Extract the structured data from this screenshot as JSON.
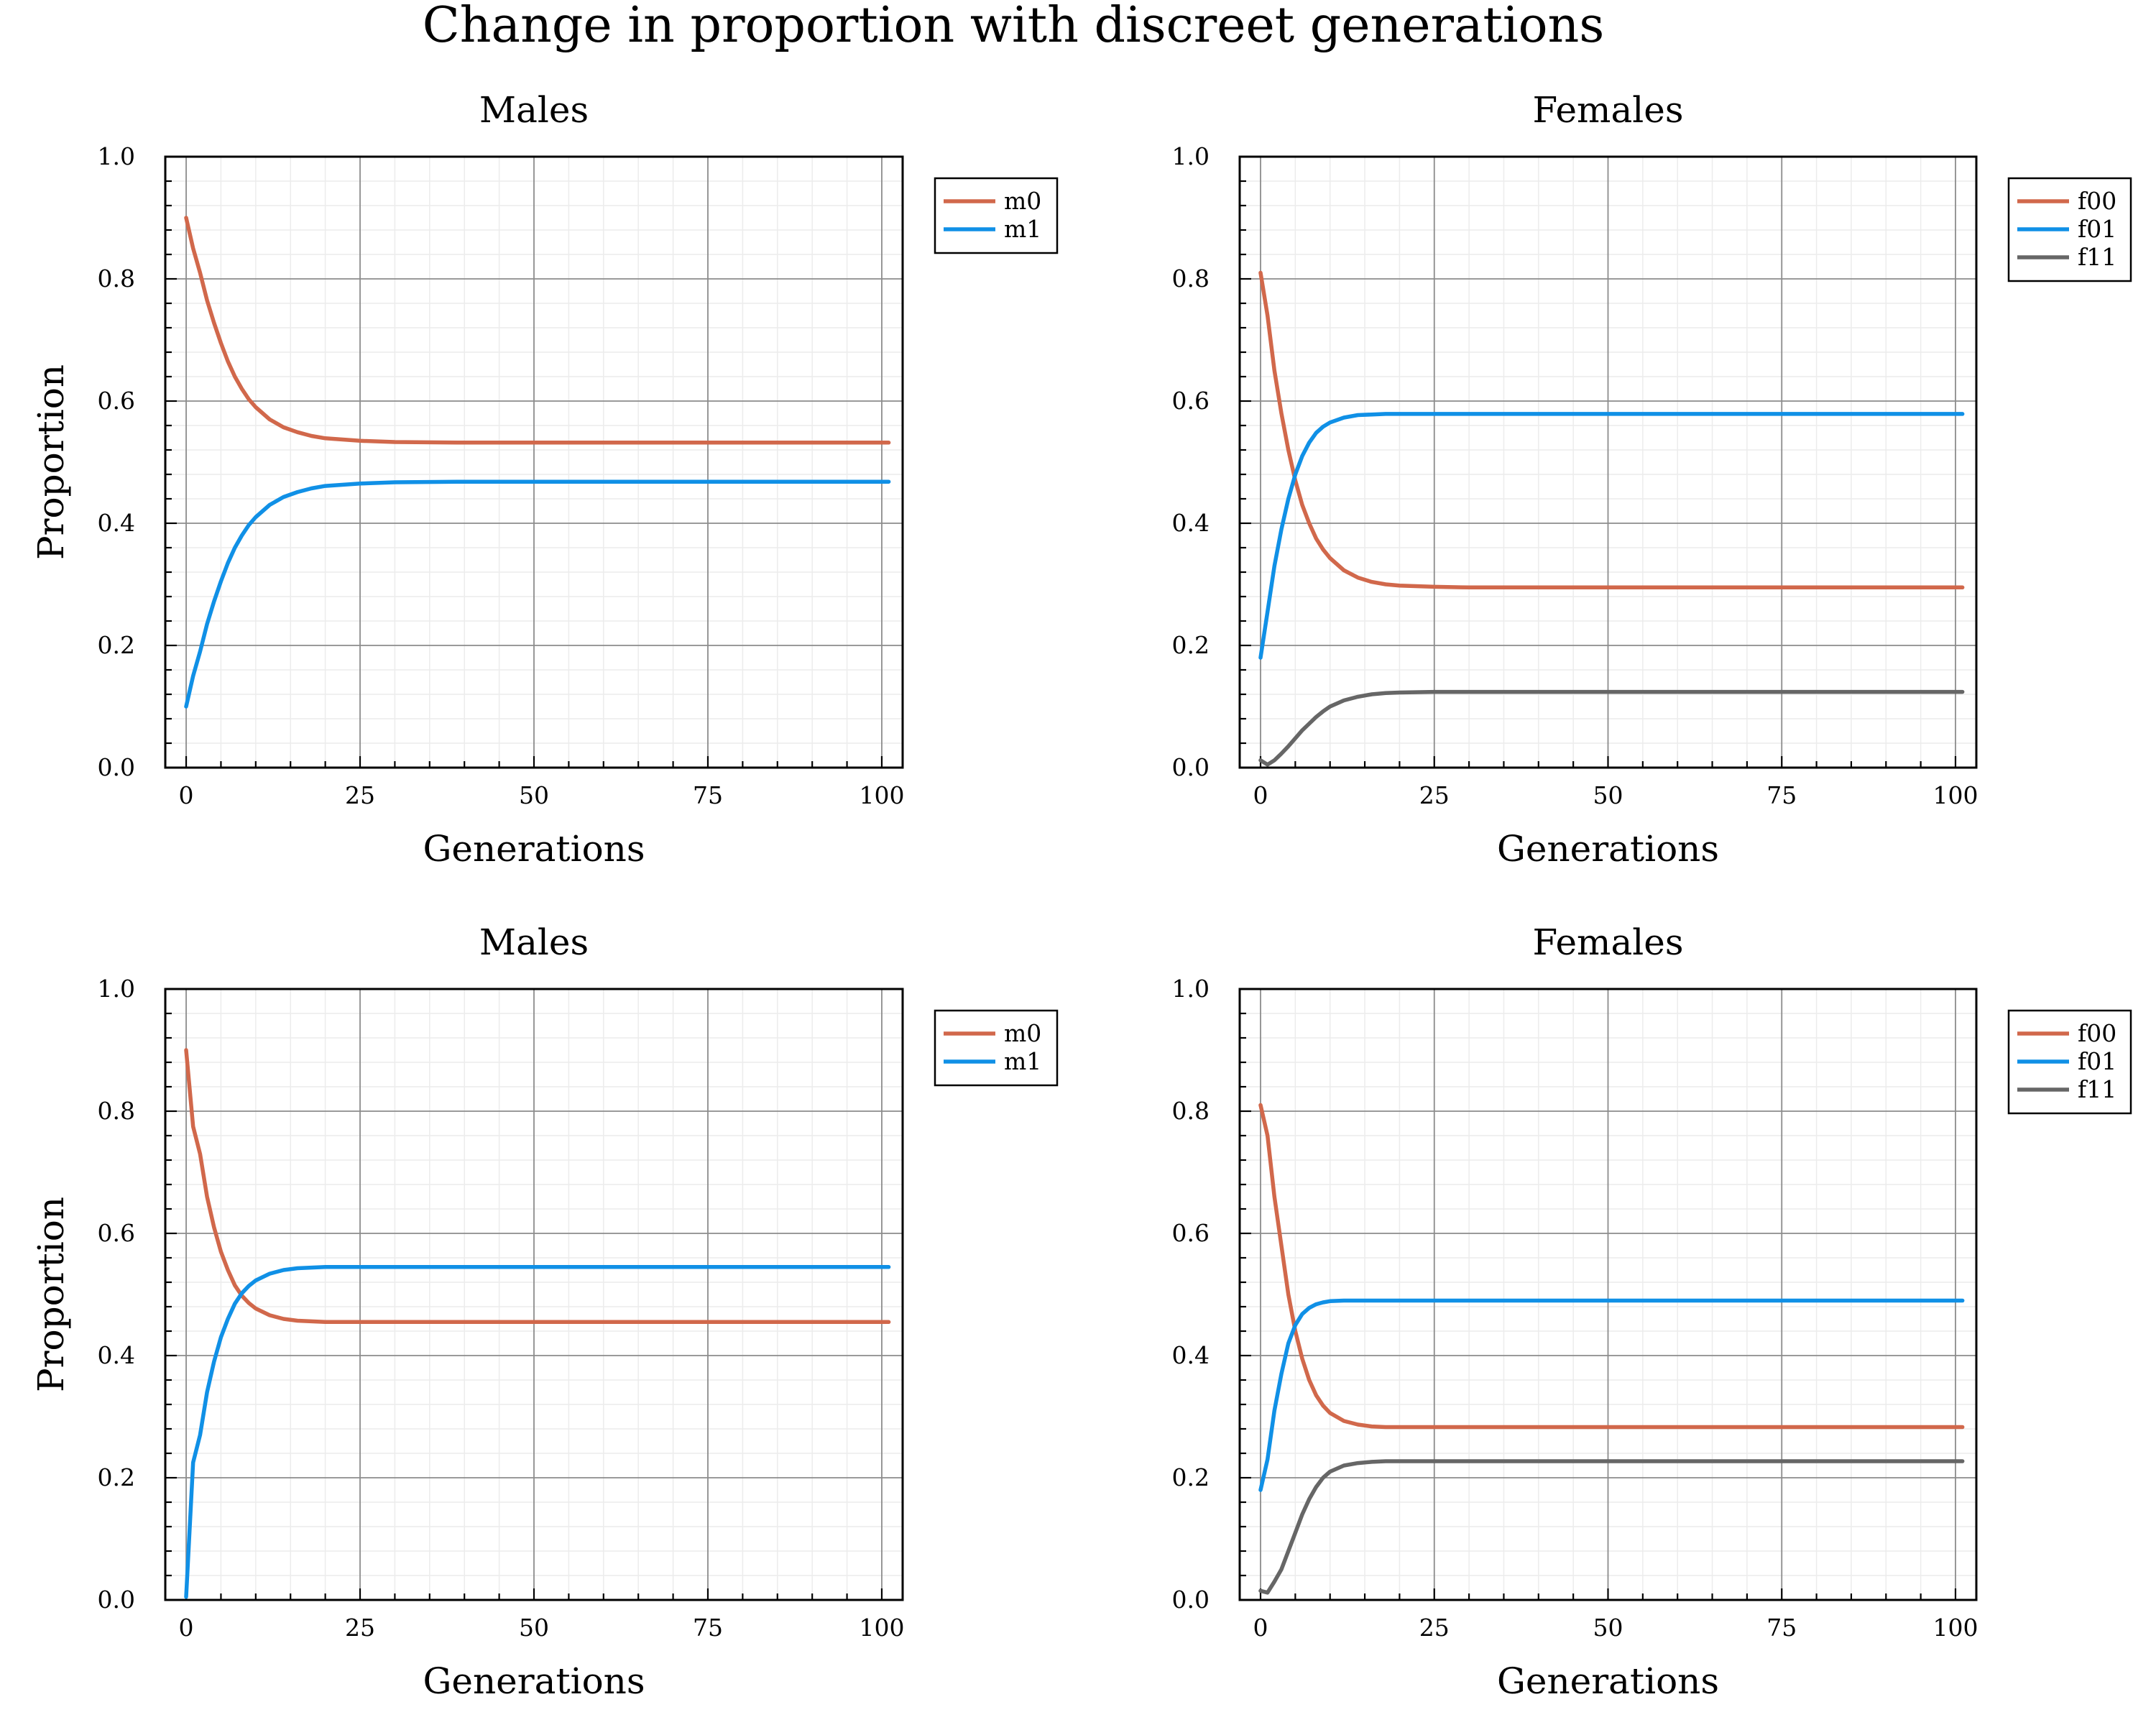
{
  "figure_title": "Change in proportion with discreet generations",
  "colors": {
    "m0": "#d1684b",
    "m1": "#1090e6",
    "f00": "#d1684b",
    "f01": "#1090e6",
    "f11": "#666666",
    "grid_major": "#8c8c8c",
    "grid_minor": "#ececec"
  },
  "chart_data": [
    {
      "type": "line",
      "title": "Males",
      "xlabel": "Generations",
      "ylabel": "Proportion",
      "xlim": [
        -3,
        103
      ],
      "ylim": [
        0,
        1
      ],
      "xticks": [
        0,
        25,
        50,
        75,
        100
      ],
      "yticks": [
        "0.0",
        "0.2",
        "0.4",
        "0.6",
        "0.8",
        "1.0"
      ],
      "grid": true,
      "legend_position": "outer-top-right",
      "x": [
        0,
        1,
        2,
        3,
        4,
        5,
        6,
        7,
        8,
        9,
        10,
        12,
        14,
        16,
        18,
        20,
        25,
        30,
        40,
        50,
        60,
        70,
        80,
        90,
        101
      ],
      "series": [
        {
          "name": "m0",
          "values": [
            0.9,
            0.85,
            0.81,
            0.765,
            0.728,
            0.695,
            0.665,
            0.64,
            0.62,
            0.603,
            0.59,
            0.57,
            0.557,
            0.549,
            0.543,
            0.539,
            0.535,
            0.533,
            0.532,
            0.532,
            0.532,
            0.532,
            0.532,
            0.532,
            0.532
          ]
        },
        {
          "name": "m1",
          "values": [
            0.1,
            0.15,
            0.19,
            0.235,
            0.272,
            0.305,
            0.335,
            0.36,
            0.38,
            0.397,
            0.41,
            0.43,
            0.443,
            0.451,
            0.457,
            0.461,
            0.465,
            0.467,
            0.468,
            0.468,
            0.468,
            0.468,
            0.468,
            0.468,
            0.468
          ]
        }
      ]
    },
    {
      "type": "line",
      "title": "Females",
      "xlabel": "Generations",
      "ylabel": "",
      "xlim": [
        -3,
        103
      ],
      "ylim": [
        0,
        1
      ],
      "xticks": [
        0,
        25,
        50,
        75,
        100
      ],
      "yticks": [
        "0.0",
        "0.2",
        "0.4",
        "0.6",
        "0.8",
        "1.0"
      ],
      "grid": true,
      "legend_position": "outer-top-right",
      "x": [
        0,
        1,
        2,
        3,
        4,
        5,
        6,
        7,
        8,
        9,
        10,
        12,
        14,
        16,
        18,
        20,
        25,
        30,
        40,
        50,
        60,
        70,
        80,
        90,
        101
      ],
      "series": [
        {
          "name": "f00",
          "values": [
            0.81,
            0.74,
            0.65,
            0.58,
            0.52,
            0.47,
            0.43,
            0.4,
            0.375,
            0.357,
            0.343,
            0.323,
            0.311,
            0.304,
            0.3,
            0.298,
            0.296,
            0.295,
            0.295,
            0.295,
            0.295,
            0.295,
            0.295,
            0.295,
            0.295
          ]
        },
        {
          "name": "f01",
          "values": [
            0.18,
            0.255,
            0.33,
            0.39,
            0.44,
            0.48,
            0.51,
            0.532,
            0.548,
            0.558,
            0.565,
            0.573,
            0.577,
            0.578,
            0.579,
            0.579,
            0.579,
            0.579,
            0.579,
            0.579,
            0.579,
            0.579,
            0.579,
            0.579,
            0.579
          ]
        },
        {
          "name": "f11",
          "values": [
            0.012,
            0.005,
            0.012,
            0.023,
            0.035,
            0.048,
            0.061,
            0.072,
            0.083,
            0.092,
            0.1,
            0.11,
            0.116,
            0.12,
            0.122,
            0.123,
            0.124,
            0.124,
            0.124,
            0.124,
            0.124,
            0.124,
            0.124,
            0.124,
            0.124
          ]
        }
      ]
    },
    {
      "type": "line",
      "title": "Males",
      "xlabel": "Generations",
      "ylabel": "Proportion",
      "xlim": [
        -3,
        103
      ],
      "ylim": [
        0,
        1
      ],
      "xticks": [
        0,
        25,
        50,
        75,
        100
      ],
      "yticks": [
        "0.0",
        "0.2",
        "0.4",
        "0.6",
        "0.8",
        "1.0"
      ],
      "grid": true,
      "legend_position": "outer-top-right",
      "x": [
        0,
        1,
        2,
        3,
        4,
        5,
        6,
        7,
        8,
        9,
        10,
        12,
        14,
        16,
        18,
        20,
        25,
        30,
        40,
        50,
        60,
        70,
        80,
        90,
        101
      ],
      "series": [
        {
          "name": "m0",
          "values": [
            0.9,
            0.775,
            0.73,
            0.66,
            0.61,
            0.57,
            0.54,
            0.515,
            0.498,
            0.486,
            0.477,
            0.466,
            0.46,
            0.457,
            0.456,
            0.455,
            0.455,
            0.455,
            0.455,
            0.455,
            0.455,
            0.455,
            0.455,
            0.455,
            0.455
          ]
        },
        {
          "name": "m1",
          "values": [
            0.005,
            0.225,
            0.27,
            0.34,
            0.39,
            0.43,
            0.46,
            0.485,
            0.502,
            0.514,
            0.523,
            0.534,
            0.54,
            0.543,
            0.544,
            0.545,
            0.545,
            0.545,
            0.545,
            0.545,
            0.545,
            0.545,
            0.545,
            0.545,
            0.545
          ]
        }
      ]
    },
    {
      "type": "line",
      "title": "Females",
      "xlabel": "Generations",
      "ylabel": "",
      "xlim": [
        -3,
        103
      ],
      "ylim": [
        0,
        1
      ],
      "xticks": [
        0,
        25,
        50,
        75,
        100
      ],
      "yticks": [
        "0.0",
        "0.2",
        "0.4",
        "0.6",
        "0.8",
        "1.0"
      ],
      "grid": true,
      "legend_position": "outer-top-right",
      "x": [
        0,
        1,
        2,
        3,
        4,
        5,
        6,
        7,
        8,
        9,
        10,
        12,
        14,
        16,
        18,
        20,
        25,
        30,
        40,
        50,
        60,
        70,
        80,
        90,
        101
      ],
      "series": [
        {
          "name": "f00",
          "values": [
            0.81,
            0.76,
            0.66,
            0.58,
            0.5,
            0.44,
            0.395,
            0.36,
            0.335,
            0.318,
            0.306,
            0.293,
            0.287,
            0.284,
            0.283,
            0.283,
            0.283,
            0.283,
            0.283,
            0.283,
            0.283,
            0.283,
            0.283,
            0.283,
            0.283
          ]
        },
        {
          "name": "f01",
          "values": [
            0.18,
            0.23,
            0.31,
            0.37,
            0.42,
            0.45,
            0.468,
            0.478,
            0.484,
            0.487,
            0.489,
            0.49,
            0.49,
            0.49,
            0.49,
            0.49,
            0.49,
            0.49,
            0.49,
            0.49,
            0.49,
            0.49,
            0.49,
            0.49,
            0.49
          ]
        },
        {
          "name": "f11",
          "values": [
            0.015,
            0.012,
            0.03,
            0.05,
            0.08,
            0.11,
            0.14,
            0.165,
            0.185,
            0.2,
            0.21,
            0.22,
            0.224,
            0.226,
            0.227,
            0.227,
            0.227,
            0.227,
            0.227,
            0.227,
            0.227,
            0.227,
            0.227,
            0.227,
            0.227
          ]
        }
      ]
    }
  ]
}
